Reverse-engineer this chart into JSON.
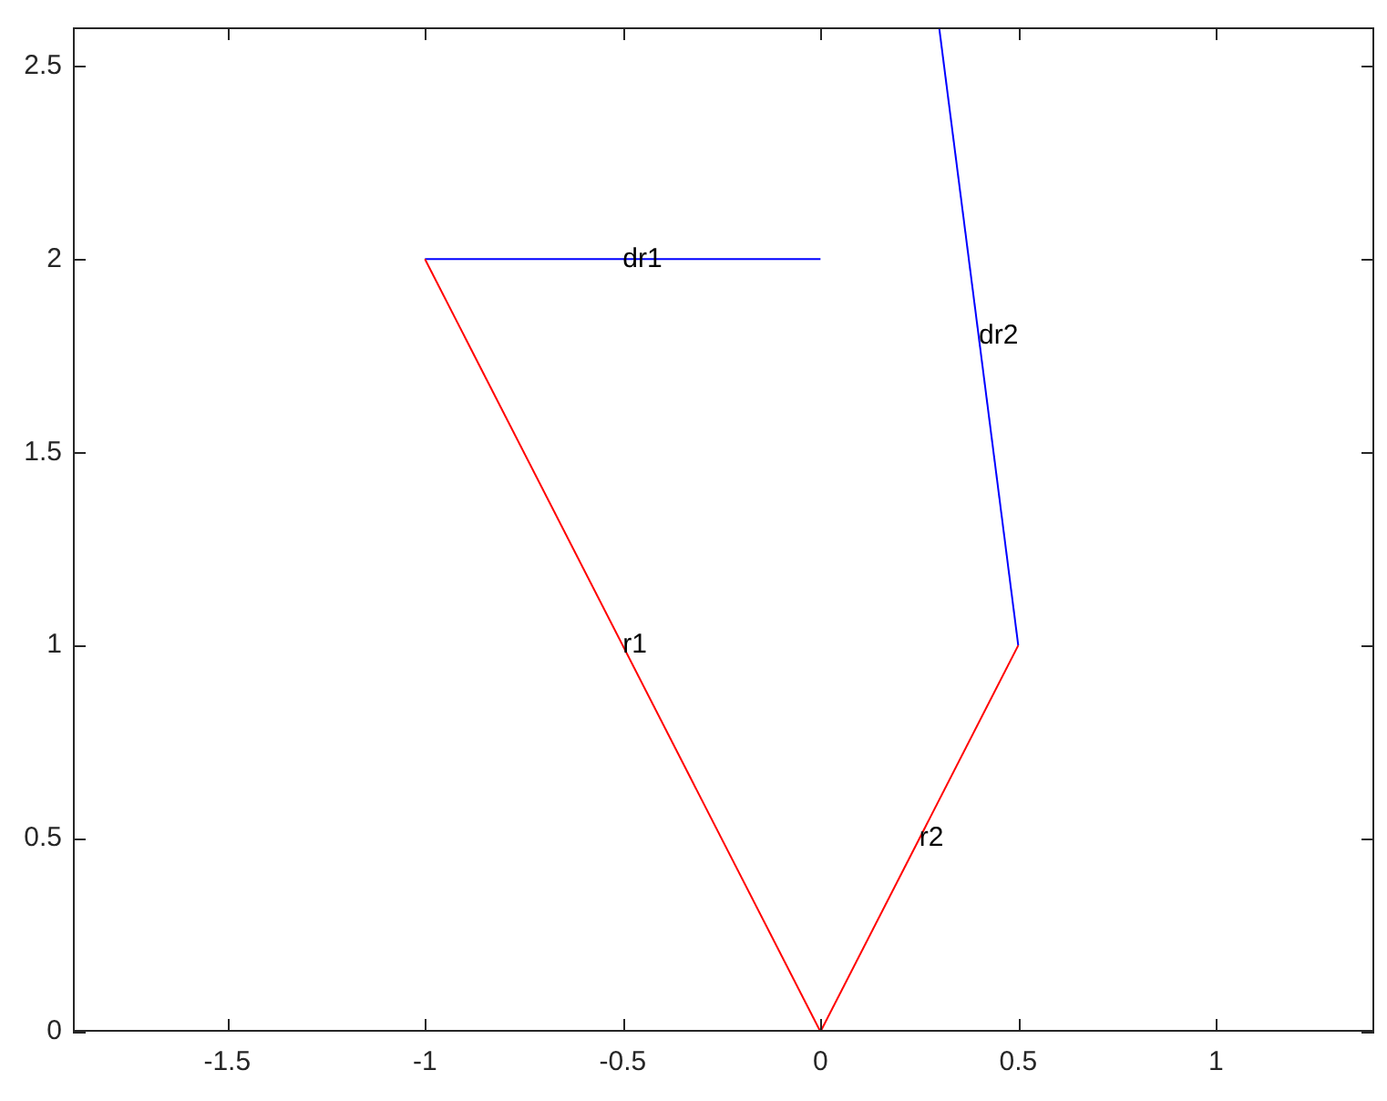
{
  "chart_data": {
    "type": "line",
    "xlim": [
      -1.89,
      1.4
    ],
    "ylim": [
      0,
      2.6
    ],
    "xticks": [
      -1.5,
      -1,
      -0.5,
      0,
      0.5,
      1
    ],
    "yticks": [
      0,
      0.5,
      1,
      1.5,
      2,
      2.5
    ],
    "grid": false,
    "legend": false,
    "marker": "none",
    "line_style": "solid",
    "series": [
      {
        "color": "#ff0000",
        "x": [
          0,
          -1
        ],
        "values": [
          0,
          2
        ]
      },
      {
        "color": "#0000ff",
        "x": [
          -1,
          0
        ],
        "values": [
          2,
          2
        ]
      },
      {
        "color": "#ff0000",
        "x": [
          0,
          0.5
        ],
        "values": [
          0,
          1
        ]
      },
      {
        "color": "#0000ff",
        "x": [
          0.5,
          0.3
        ],
        "values": [
          1,
          2.6
        ]
      }
    ],
    "annotations": [
      {
        "text": "r1",
        "x": -0.5,
        "y": 1
      },
      {
        "text": "dr1",
        "x": -0.5,
        "y": 2
      },
      {
        "text": "r2",
        "x": 0.25,
        "y": 0.5
      },
      {
        "text": "dr2",
        "x": 0.4,
        "y": 1.8
      }
    ]
  }
}
